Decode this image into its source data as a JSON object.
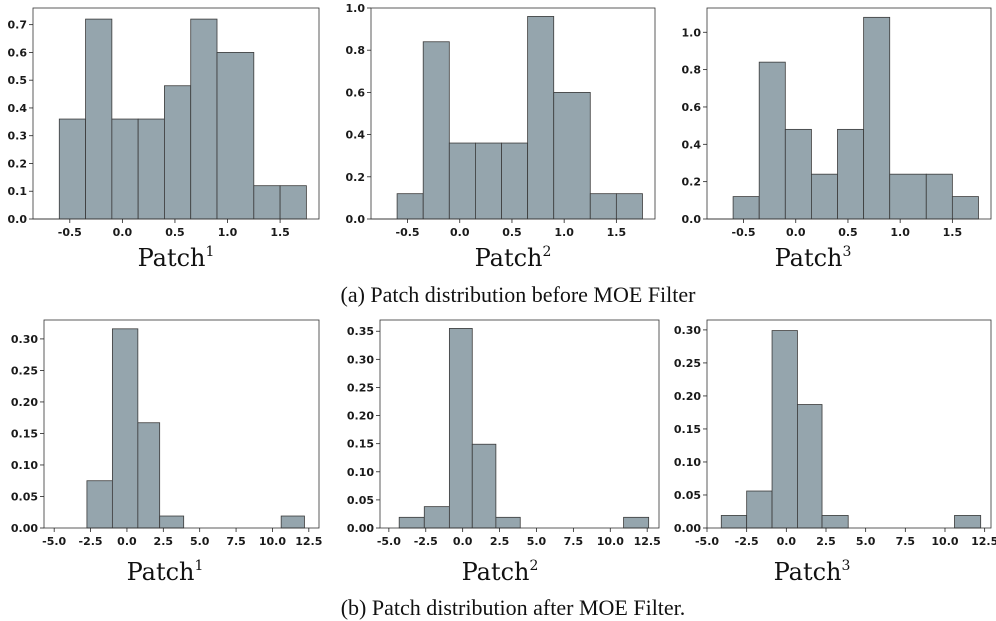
{
  "figure": {
    "captions": [
      "(a) Patch distribution before MOE Filter",
      "(b) Patch distribution after MOE Filter."
    ]
  },
  "chart_data": [
    {
      "id": "a1",
      "type": "bar",
      "title": "",
      "label": "Patch",
      "superscript": "1",
      "bin_edges": [
        -0.85,
        -0.6,
        -0.35,
        -0.1,
        0.15,
        0.4,
        0.65,
        0.9,
        1.25,
        1.5,
        1.75
      ],
      "values": [
        0.0,
        0.36,
        0.72,
        0.36,
        0.36,
        0.48,
        0.72,
        0.6,
        0.12,
        0.12
      ],
      "xlim": [
        -0.85,
        1.87
      ],
      "ylim": [
        0,
        0.76
      ],
      "xticks": [
        -0.5,
        0.0,
        0.5,
        1.0,
        1.5
      ],
      "xtick_labels": [
        "-0.5",
        "0.0",
        "0.5",
        "1.0",
        "1.5"
      ],
      "yticks": [
        0,
        0.1,
        0.2,
        0.3,
        0.4,
        0.5,
        0.6,
        0.7
      ],
      "ytick_labels": [
        "0.0",
        "0.1",
        "0.2",
        "0.3",
        "0.4",
        "0.5",
        "0.6",
        "0.7"
      ]
    },
    {
      "id": "a2",
      "type": "bar",
      "title": "",
      "label": "Patch",
      "superscript": "2",
      "bin_edges": [
        -0.85,
        -0.6,
        -0.35,
        -0.1,
        0.15,
        0.4,
        0.65,
        0.9,
        1.25,
        1.5,
        1.75
      ],
      "values": [
        0.0,
        0.12,
        0.84,
        0.36,
        0.36,
        0.36,
        0.96,
        0.6,
        0.12,
        0.12
      ],
      "xlim": [
        -0.85,
        1.87
      ],
      "ylim": [
        0,
        1.0
      ],
      "xticks": [
        -0.5,
        0.0,
        0.5,
        1.0,
        1.5
      ],
      "xtick_labels": [
        "-0.5",
        "0.0",
        "0.5",
        "1.0",
        "1.5"
      ],
      "yticks": [
        0,
        0.2,
        0.4,
        0.6,
        0.8,
        1.0
      ],
      "ytick_labels": [
        "0.0",
        "0.2",
        "0.4",
        "0.6",
        "0.8",
        "1.0"
      ]
    },
    {
      "id": "a3",
      "type": "bar",
      "title": "",
      "label": "Patch",
      "superscript": "3",
      "bin_edges": [
        -0.85,
        -0.6,
        -0.35,
        -0.1,
        0.15,
        0.4,
        0.65,
        0.9,
        1.25,
        1.5,
        1.75
      ],
      "values": [
        0.0,
        0.12,
        0.84,
        0.48,
        0.24,
        0.48,
        1.08,
        0.24,
        0.24,
        0.12
      ],
      "xlim": [
        -0.85,
        1.87
      ],
      "ylim": [
        0,
        1.13
      ],
      "xticks": [
        -0.5,
        0.0,
        0.5,
        1.0,
        1.5
      ],
      "xtick_labels": [
        "-0.5",
        "0.0",
        "0.5",
        "1.0",
        "1.5"
      ],
      "yticks": [
        0,
        0.2,
        0.4,
        0.6,
        0.8,
        1.0
      ],
      "ytick_labels": [
        "0.0",
        "0.2",
        "0.4",
        "0.6",
        "0.8",
        "1.0"
      ]
    },
    {
      "id": "b1",
      "type": "bar",
      "title": "",
      "label": "Patch",
      "superscript": "1",
      "bin_edges": [
        -2.75,
        -1.0,
        0.75,
        2.25,
        3.9,
        10.6,
        12.2
      ],
      "values": [
        0.075,
        0.316,
        0.167,
        0.019,
        0.0,
        0.019
      ],
      "skip_zero": true,
      "xlim": [
        -5.7,
        13.2
      ],
      "ylim": [
        0,
        0.33
      ],
      "xticks": [
        -5.0,
        -2.5,
        0.0,
        2.5,
        5.0,
        7.5,
        10.0,
        12.5
      ],
      "xtick_labels": [
        "-5.0",
        "-2.5",
        "0.0",
        "2.5",
        "5.0",
        "7.5",
        "10.0",
        "12.5"
      ],
      "yticks": [
        0,
        0.05,
        0.1,
        0.15,
        0.2,
        0.25,
        0.3
      ],
      "ytick_labels": [
        "0.00",
        "0.05",
        "0.10",
        "0.15",
        "0.20",
        "0.25",
        "0.30"
      ]
    },
    {
      "id": "b2",
      "type": "bar",
      "title": "",
      "label": "Patch",
      "superscript": "2",
      "bin_edges": [
        -4.3,
        -2.6,
        -0.9,
        0.65,
        2.25,
        3.9,
        10.9,
        12.6
      ],
      "values": [
        0.019,
        0.038,
        0.355,
        0.149,
        0.019,
        0.0,
        0.019
      ],
      "skip_zero": true,
      "xlim": [
        -5.6,
        13.3
      ],
      "ylim": [
        0,
        0.37
      ],
      "xticks": [
        -5.0,
        -2.5,
        0.0,
        2.5,
        5.0,
        7.5,
        10.0,
        12.5
      ],
      "xtick_labels": [
        "-5.0",
        "-2.5",
        "0.0",
        "2.5",
        "5.0",
        "7.5",
        "10.0",
        "12.5"
      ],
      "yticks": [
        0,
        0.05,
        0.1,
        0.15,
        0.2,
        0.25,
        0.3,
        0.35
      ],
      "ytick_labels": [
        "0.00",
        "0.05",
        "0.10",
        "0.15",
        "0.20",
        "0.25",
        "0.30",
        "0.35"
      ]
    },
    {
      "id": "b3",
      "type": "bar",
      "title": "",
      "label": "Patch",
      "superscript": "3",
      "bin_edges": [
        -4.1,
        -2.5,
        -0.9,
        0.7,
        2.25,
        3.9,
        10.6,
        12.25
      ],
      "values": [
        0.019,
        0.056,
        0.299,
        0.187,
        0.019,
        0.0,
        0.019
      ],
      "skip_zero": true,
      "xlim": [
        -5.0,
        12.9
      ],
      "ylim": [
        0,
        0.315
      ],
      "xticks": [
        -5.0,
        -2.5,
        0.0,
        2.5,
        5.0,
        7.5,
        10.0,
        12.5
      ],
      "xtick_labels": [
        "-5.0",
        "-2.5",
        "0.0",
        "2.5",
        "5.0",
        "7.5",
        "10.0",
        "12.5"
      ],
      "yticks": [
        0,
        0.05,
        0.1,
        0.15,
        0.2,
        0.25,
        0.3
      ],
      "ytick_labels": [
        "0.00",
        "0.05",
        "0.10",
        "0.15",
        "0.20",
        "0.25",
        "0.30"
      ]
    }
  ]
}
